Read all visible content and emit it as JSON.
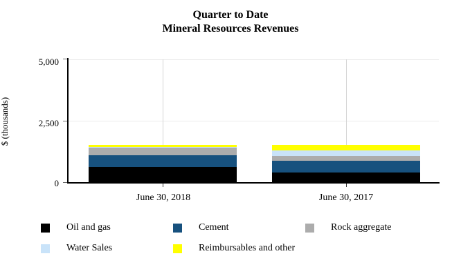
{
  "title": {
    "line1": "Quarter to Date",
    "line2": "Mineral Resources Revenues"
  },
  "chart_data": {
    "type": "bar",
    "stacked": true,
    "title": "Quarter to Date Mineral Resources Revenues",
    "categories": [
      "June 30, 2018",
      "June 30, 2017"
    ],
    "series": [
      {
        "name": "Oil and gas",
        "color": "#000000",
        "values": [
          620,
          380
        ]
      },
      {
        "name": "Cement",
        "color": "#17517e",
        "values": [
          475,
          490
        ]
      },
      {
        "name": "Rock aggregate",
        "color": "#acacac",
        "values": [
          300,
          210
        ]
      },
      {
        "name": "Water Sales",
        "color": "#c9e3f9",
        "values": [
          30,
          200
        ]
      },
      {
        "name": "Reimbursables and other",
        "color": "#ffff00",
        "values": [
          100,
          230
        ]
      }
    ],
    "xlabel": "",
    "ylabel": "$ (thousands)",
    "ylim": [
      0,
      5000
    ],
    "yticks": [
      0,
      2500,
      5000
    ],
    "ytick_labels": [
      "0",
      "2,500",
      "5,000"
    ],
    "grid": "horizontal gridlines at 2,500 and 5,000; vertical gridline at each category center",
    "legend_position": "bottom"
  },
  "colors": {
    "axis": "#000000",
    "gridline_horizontal": "#ebebeb",
    "gridline_vertical": "#d4d4d4",
    "background": "#ffffff"
  }
}
